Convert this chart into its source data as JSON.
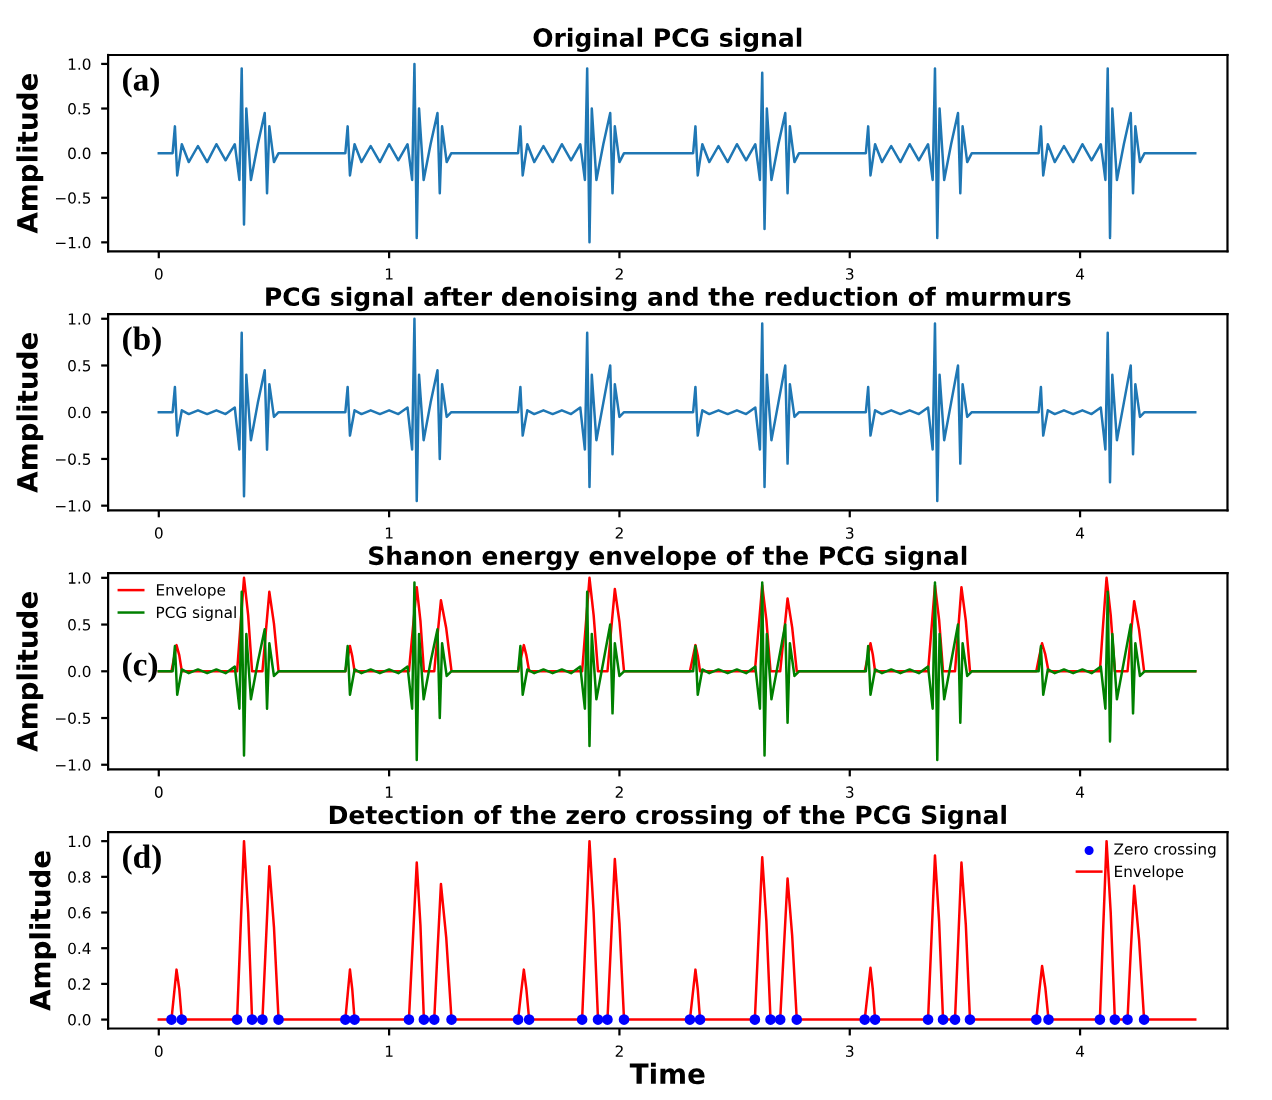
{
  "chart_data": [
    {
      "type": "line",
      "title": "Original PCG signal",
      "ylabel": "Amplitude",
      "annotations": [
        "(a)"
      ],
      "xlim": [
        -0.22,
        4.64
      ],
      "ylim": [
        -1.1,
        1.1
      ],
      "xticks": [
        0,
        1,
        2,
        3,
        4
      ],
      "yticks": [
        {
          "value": -1,
          "label": "−1.0"
        },
        {
          "value": -0.5,
          "label": "−0.5"
        },
        {
          "value": 0,
          "label": "0.0"
        },
        {
          "value": 0.5,
          "label": "0.5"
        },
        {
          "value": 1,
          "label": "1.0"
        }
      ],
      "grid": false,
      "series": [
        {
          "color": "#1f77b4",
          "x": [
            0,
            0.06,
            0.07,
            0.08,
            0.1,
            0.13,
            0.17,
            0.21,
            0.25,
            0.29,
            0.33,
            0.35,
            0.36,
            0.37,
            0.38,
            0.4,
            0.43,
            0.46,
            0.47,
            0.48,
            0.5,
            0.52,
            0.81,
            0.82,
            0.83,
            0.85,
            0.88,
            0.92,
            0.96,
            1.0,
            1.04,
            1.08,
            1.1,
            1.11,
            1.12,
            1.13,
            1.15,
            1.18,
            1.21,
            1.22,
            1.23,
            1.25,
            1.27,
            1.56,
            1.57,
            1.58,
            1.6,
            1.63,
            1.67,
            1.71,
            1.75,
            1.79,
            1.83,
            1.85,
            1.86,
            1.87,
            1.88,
            1.9,
            1.93,
            1.96,
            1.97,
            1.98,
            2.0,
            2.02,
            2.32,
            2.33,
            2.34,
            2.36,
            2.39,
            2.43,
            2.47,
            2.51,
            2.55,
            2.59,
            2.61,
            2.62,
            2.63,
            2.64,
            2.66,
            2.69,
            2.72,
            2.73,
            2.74,
            2.76,
            2.78,
            3.07,
            3.08,
            3.09,
            3.11,
            3.14,
            3.18,
            3.22,
            3.26,
            3.3,
            3.34,
            3.36,
            3.37,
            3.38,
            3.39,
            3.41,
            3.44,
            3.47,
            3.48,
            3.49,
            3.51,
            3.53,
            3.82,
            3.83,
            3.84,
            3.86,
            3.89,
            3.93,
            3.97,
            4.01,
            4.05,
            4.09,
            4.11,
            4.12,
            4.13,
            4.14,
            4.16,
            4.19,
            4.22,
            4.23,
            4.24,
            4.26,
            4.28,
            4.5
          ],
          "values": [
            0,
            0,
            0.3,
            -0.25,
            0.1,
            -0.1,
            0.08,
            -0.1,
            0.1,
            -0.08,
            0.1,
            -0.3,
            0.95,
            -0.8,
            0.5,
            -0.3,
            0.1,
            0.45,
            -0.45,
            0.3,
            -0.1,
            0,
            0,
            0.3,
            -0.25,
            0.1,
            -0.1,
            0.08,
            -0.1,
            0.1,
            -0.08,
            0.1,
            -0.3,
            1.0,
            -0.95,
            0.5,
            -0.3,
            0.1,
            0.45,
            -0.45,
            0.3,
            -0.1,
            0,
            0,
            0.3,
            -0.25,
            0.1,
            -0.1,
            0.08,
            -0.1,
            0.1,
            -0.08,
            0.1,
            -0.3,
            0.95,
            -1.0,
            0.5,
            -0.3,
            0.1,
            0.45,
            -0.45,
            0.3,
            -0.1,
            0,
            0,
            0.3,
            -0.25,
            0.1,
            -0.1,
            0.08,
            -0.1,
            0.1,
            -0.08,
            0.1,
            -0.3,
            0.9,
            -0.85,
            0.5,
            -0.3,
            0.1,
            0.45,
            -0.45,
            0.3,
            -0.1,
            0,
            0,
            0.3,
            -0.25,
            0.1,
            -0.1,
            0.08,
            -0.1,
            0.1,
            -0.08,
            0.1,
            -0.3,
            0.95,
            -0.95,
            0.5,
            -0.3,
            0.1,
            0.45,
            -0.45,
            0.3,
            -0.1,
            0,
            0,
            0.3,
            -0.25,
            0.1,
            -0.1,
            0.08,
            -0.1,
            0.1,
            -0.08,
            0.1,
            -0.3,
            0.95,
            -0.95,
            0.5,
            -0.3,
            0.1,
            0.45,
            -0.45,
            0.3,
            -0.1,
            0,
            0
          ]
        }
      ]
    },
    {
      "type": "line",
      "title": "PCG signal after denoising and the reduction of murmurs",
      "ylabel": "Amplitude",
      "annotations": [
        "(b)"
      ],
      "xlim": [
        -0.22,
        4.64
      ],
      "ylim": [
        -1.05,
        1.05
      ],
      "xticks": [
        0,
        1,
        2,
        3,
        4
      ],
      "yticks": [
        {
          "value": -1,
          "label": "−1.0"
        },
        {
          "value": -0.5,
          "label": "−0.5"
        },
        {
          "value": 0,
          "label": "0.0"
        },
        {
          "value": 0.5,
          "label": "0.5"
        },
        {
          "value": 1,
          "label": "1.0"
        }
      ],
      "grid": false,
      "series": [
        {
          "color": "#1f77b4",
          "x": [
            0,
            0.06,
            0.07,
            0.08,
            0.1,
            0.13,
            0.17,
            0.21,
            0.25,
            0.29,
            0.33,
            0.35,
            0.36,
            0.37,
            0.38,
            0.4,
            0.43,
            0.46,
            0.47,
            0.48,
            0.5,
            0.52,
            0.81,
            0.82,
            0.83,
            0.85,
            0.88,
            0.92,
            0.96,
            1.0,
            1.04,
            1.08,
            1.1,
            1.11,
            1.12,
            1.13,
            1.15,
            1.18,
            1.21,
            1.22,
            1.23,
            1.25,
            1.27,
            1.56,
            1.57,
            1.58,
            1.6,
            1.63,
            1.67,
            1.71,
            1.75,
            1.79,
            1.83,
            1.85,
            1.86,
            1.87,
            1.88,
            1.9,
            1.93,
            1.96,
            1.97,
            1.98,
            2.0,
            2.02,
            2.32,
            2.33,
            2.34,
            2.36,
            2.39,
            2.43,
            2.47,
            2.51,
            2.55,
            2.59,
            2.61,
            2.62,
            2.63,
            2.64,
            2.66,
            2.69,
            2.72,
            2.73,
            2.74,
            2.76,
            2.78,
            3.07,
            3.08,
            3.09,
            3.11,
            3.14,
            3.18,
            3.22,
            3.26,
            3.3,
            3.34,
            3.36,
            3.37,
            3.38,
            3.39,
            3.41,
            3.44,
            3.47,
            3.48,
            3.49,
            3.51,
            3.53,
            3.82,
            3.83,
            3.84,
            3.86,
            3.89,
            3.93,
            3.97,
            4.01,
            4.05,
            4.09,
            4.11,
            4.12,
            4.13,
            4.14,
            4.16,
            4.19,
            4.22,
            4.23,
            4.24,
            4.26,
            4.28,
            4.5
          ],
          "values": [
            0,
            0,
            0.27,
            -0.25,
            0.02,
            -0.02,
            0.02,
            -0.02,
            0.02,
            -0.02,
            0.05,
            -0.4,
            0.85,
            -0.9,
            0.4,
            -0.3,
            0.1,
            0.45,
            -0.4,
            0.3,
            -0.05,
            0,
            0,
            0.27,
            -0.25,
            0.02,
            -0.02,
            0.02,
            -0.02,
            0.02,
            -0.02,
            0.05,
            -0.4,
            1.0,
            -0.95,
            0.4,
            -0.3,
            0.1,
            0.45,
            -0.5,
            0.3,
            -0.05,
            0,
            0,
            0.27,
            -0.25,
            0.02,
            -0.02,
            0.02,
            -0.02,
            0.02,
            -0.02,
            0.05,
            -0.4,
            0.85,
            -0.8,
            0.4,
            -0.3,
            0.1,
            0.5,
            -0.45,
            0.3,
            -0.05,
            0,
            0,
            0.27,
            -0.25,
            0.02,
            -0.02,
            0.02,
            -0.02,
            0.02,
            -0.02,
            0.05,
            -0.4,
            0.95,
            -0.8,
            0.4,
            -0.3,
            0.1,
            0.5,
            -0.55,
            0.3,
            -0.05,
            0,
            0,
            0.27,
            -0.25,
            0.02,
            -0.02,
            0.02,
            -0.02,
            0.02,
            -0.02,
            0.05,
            -0.4,
            0.95,
            -0.95,
            0.4,
            -0.3,
            0.1,
            0.5,
            -0.55,
            0.3,
            -0.05,
            0,
            0,
            0.27,
            -0.25,
            0.02,
            -0.02,
            0.02,
            -0.02,
            0.02,
            -0.02,
            0.05,
            -0.4,
            0.85,
            -0.75,
            0.4,
            -0.3,
            0.1,
            0.5,
            -0.45,
            0.3,
            -0.05,
            0,
            0
          ]
        }
      ]
    },
    {
      "type": "line",
      "title": "Shanon energy envelope of the PCG signal",
      "ylabel": "Amplitude",
      "annotations": [
        "(c)"
      ],
      "legend": "top left",
      "xlim": [
        -0.22,
        4.64
      ],
      "ylim": [
        -1.05,
        1.05
      ],
      "xticks": [
        0,
        1,
        2,
        3,
        4
      ],
      "yticks": [
        {
          "value": -1,
          "label": "−1.0"
        },
        {
          "value": -0.5,
          "label": "−0.5"
        },
        {
          "value": 0,
          "label": "0.0"
        },
        {
          "value": 0.5,
          "label": "0.5"
        },
        {
          "value": 1,
          "label": "1.0"
        }
      ],
      "grid": false,
      "series": [
        {
          "name": "Envelope",
          "color": "#ff0000",
          "x": [
            0,
            0.055,
            0.066,
            0.077,
            0.089,
            0.1,
            0.34,
            0.355,
            0.37,
            0.388,
            0.405,
            0.45,
            0.465,
            0.48,
            0.5,
            0.52,
            0.81,
            0.82,
            0.83,
            0.84,
            0.85,
            1.086,
            1.103,
            1.12,
            1.136,
            1.151,
            1.196,
            1.21,
            1.225,
            1.248,
            1.271,
            1.56,
            1.572,
            1.585,
            1.596,
            1.608,
            1.838,
            1.854,
            1.87,
            1.888,
            1.907,
            1.948,
            1.964,
            1.98,
            2.0,
            2.02,
            2.306,
            2.318,
            2.33,
            2.34,
            2.35,
            2.588,
            2.604,
            2.62,
            2.638,
            2.656,
            2.698,
            2.714,
            2.73,
            2.75,
            2.77,
            3.065,
            3.078,
            3.09,
            3.1,
            3.11,
            3.34,
            3.355,
            3.37,
            3.388,
            3.405,
            3.457,
            3.471,
            3.485,
            3.504,
            3.522,
            3.81,
            3.822,
            3.835,
            3.849,
            3.863,
            4.086,
            4.1,
            4.115,
            4.133,
            4.151,
            4.206,
            4.22,
            4.235,
            4.256,
            4.278,
            4.5
          ],
          "values": [
            0,
            0,
            0.14,
            0.28,
            0.17,
            0,
            0,
            0.5,
            1.0,
            0.6,
            0,
            0,
            0.43,
            0.85,
            0.51,
            0,
            0,
            0.14,
            0.27,
            0.16,
            0,
            0,
            0.45,
            0.9,
            0.54,
            0,
            0,
            0.38,
            0.76,
            0.46,
            0,
            0,
            0.14,
            0.28,
            0.17,
            0,
            0,
            0.5,
            1.0,
            0.6,
            0,
            0,
            0.44,
            0.88,
            0.53,
            0,
            0,
            0.14,
            0.28,
            0.17,
            0,
            0,
            0.46,
            0.92,
            0.55,
            0,
            0,
            0.39,
            0.78,
            0.47,
            0,
            0,
            0.15,
            0.3,
            0.18,
            0,
            0,
            0.46,
            0.92,
            0.55,
            0,
            0,
            0.45,
            0.9,
            0.54,
            0,
            0,
            0.15,
            0.3,
            0.18,
            0,
            0,
            0.5,
            1.0,
            0.6,
            0,
            0,
            0.38,
            0.75,
            0.45,
            0,
            0
          ]
        },
        {
          "name": "PCG signal",
          "color": "#008000",
          "x": [
            0,
            0.06,
            0.07,
            0.08,
            0.1,
            0.13,
            0.17,
            0.21,
            0.25,
            0.29,
            0.33,
            0.35,
            0.36,
            0.37,
            0.38,
            0.4,
            0.43,
            0.46,
            0.47,
            0.48,
            0.5,
            0.52,
            0.81,
            0.82,
            0.83,
            0.85,
            0.88,
            0.92,
            0.96,
            1.0,
            1.04,
            1.08,
            1.1,
            1.11,
            1.12,
            1.13,
            1.15,
            1.18,
            1.21,
            1.22,
            1.23,
            1.25,
            1.27,
            1.56,
            1.57,
            1.58,
            1.6,
            1.63,
            1.67,
            1.71,
            1.75,
            1.79,
            1.83,
            1.85,
            1.86,
            1.87,
            1.88,
            1.9,
            1.93,
            1.96,
            1.97,
            1.98,
            2.0,
            2.02,
            2.32,
            2.33,
            2.34,
            2.36,
            2.39,
            2.43,
            2.47,
            2.51,
            2.55,
            2.59,
            2.61,
            2.62,
            2.63,
            2.64,
            2.66,
            2.69,
            2.72,
            2.73,
            2.74,
            2.76,
            2.78,
            3.07,
            3.08,
            3.09,
            3.11,
            3.14,
            3.18,
            3.22,
            3.26,
            3.3,
            3.34,
            3.36,
            3.37,
            3.38,
            3.39,
            3.41,
            3.44,
            3.47,
            3.48,
            3.49,
            3.51,
            3.53,
            3.82,
            3.83,
            3.84,
            3.86,
            3.89,
            3.93,
            3.97,
            4.01,
            4.05,
            4.09,
            4.11,
            4.12,
            4.13,
            4.14,
            4.16,
            4.19,
            4.22,
            4.23,
            4.24,
            4.26,
            4.28,
            4.5
          ],
          "values": [
            0,
            0,
            0.27,
            -0.25,
            0.02,
            -0.02,
            0.02,
            -0.02,
            0.02,
            -0.02,
            0.05,
            -0.4,
            0.85,
            -0.9,
            0.4,
            -0.3,
            0.1,
            0.45,
            -0.4,
            0.3,
            -0.05,
            0,
            0,
            0.27,
            -0.25,
            0.02,
            -0.02,
            0.02,
            -0.02,
            0.02,
            -0.02,
            0.05,
            -0.4,
            0.95,
            -0.95,
            0.4,
            -0.3,
            0.1,
            0.45,
            -0.5,
            0.3,
            -0.05,
            0,
            0,
            0.27,
            -0.25,
            0.02,
            -0.02,
            0.02,
            -0.02,
            0.02,
            -0.02,
            0.05,
            -0.4,
            0.85,
            -0.8,
            0.4,
            -0.3,
            0.1,
            0.5,
            -0.45,
            0.3,
            -0.05,
            0,
            0,
            0.27,
            -0.25,
            0.02,
            -0.02,
            0.02,
            -0.02,
            0.02,
            -0.02,
            0.05,
            -0.4,
            0.95,
            -0.9,
            0.4,
            -0.3,
            0.1,
            0.5,
            -0.55,
            0.3,
            -0.05,
            0,
            0,
            0.27,
            -0.25,
            0.02,
            -0.02,
            0.02,
            -0.02,
            0.02,
            -0.02,
            0.05,
            -0.4,
            0.95,
            -0.95,
            0.4,
            -0.3,
            0.1,
            0.5,
            -0.55,
            0.3,
            -0.05,
            0,
            0,
            0.27,
            -0.25,
            0.02,
            -0.02,
            0.02,
            -0.02,
            0.02,
            -0.02,
            0.05,
            -0.4,
            0.85,
            -0.75,
            0.4,
            -0.3,
            0.1,
            0.5,
            -0.45,
            0.3,
            -0.05,
            0,
            0
          ]
        }
      ]
    },
    {
      "type": "line",
      "title": "Detection of the zero crossing of the PCG Signal",
      "xlabel": "Time",
      "ylabel": "Amplitude",
      "annotations": [
        "(d)"
      ],
      "legend": "top right",
      "xlim": [
        -0.22,
        4.64
      ],
      "ylim": [
        -0.05,
        1.05
      ],
      "xticks": [
        0,
        1,
        2,
        3,
        4
      ],
      "yticks": [
        {
          "value": 0,
          "label": "0.0"
        },
        {
          "value": 0.2,
          "label": "0.2"
        },
        {
          "value": 0.4,
          "label": "0.4"
        },
        {
          "value": 0.6,
          "label": "0.6"
        },
        {
          "value": 0.8,
          "label": "0.8"
        },
        {
          "value": 1,
          "label": "1.0"
        }
      ],
      "grid": false,
      "series": [
        {
          "name": "Zero crossing",
          "type": "scatter",
          "marker": "circle",
          "color": "#0000ff",
          "x": [
            0.055,
            0.1,
            0.34,
            0.405,
            0.45,
            0.52,
            0.81,
            0.85,
            1.086,
            1.151,
            1.196,
            1.271,
            1.56,
            1.608,
            1.838,
            1.907,
            1.948,
            2.02,
            2.306,
            2.35,
            2.588,
            2.656,
            2.698,
            2.77,
            3.065,
            3.11,
            3.34,
            3.405,
            3.457,
            3.522,
            3.81,
            3.863,
            4.086,
            4.151,
            4.206,
            4.278
          ],
          "values": [
            0,
            0,
            0,
            0,
            0,
            0,
            0,
            0,
            0,
            0,
            0,
            0,
            0,
            0,
            0,
            0,
            0,
            0,
            0,
            0,
            0,
            0,
            0,
            0,
            0,
            0,
            0,
            0,
            0,
            0,
            0,
            0,
            0,
            0,
            0,
            0
          ]
        },
        {
          "name": "Envelope",
          "color": "#ff0000",
          "x": [
            0,
            0.055,
            0.066,
            0.077,
            0.089,
            0.1,
            0.34,
            0.355,
            0.37,
            0.388,
            0.405,
            0.45,
            0.465,
            0.48,
            0.5,
            0.52,
            0.81,
            0.82,
            0.83,
            0.84,
            0.85,
            1.086,
            1.103,
            1.12,
            1.136,
            1.151,
            1.196,
            1.21,
            1.225,
            1.248,
            1.271,
            1.56,
            1.572,
            1.585,
            1.596,
            1.608,
            1.838,
            1.854,
            1.87,
            1.888,
            1.907,
            1.948,
            1.964,
            1.98,
            2.0,
            2.02,
            2.306,
            2.318,
            2.33,
            2.34,
            2.35,
            2.588,
            2.604,
            2.62,
            2.638,
            2.656,
            2.698,
            2.714,
            2.73,
            2.75,
            2.77,
            3.065,
            3.078,
            3.09,
            3.1,
            3.11,
            3.34,
            3.355,
            3.37,
            3.388,
            3.405,
            3.457,
            3.471,
            3.485,
            3.504,
            3.522,
            3.81,
            3.822,
            3.835,
            3.849,
            3.863,
            4.086,
            4.1,
            4.115,
            4.133,
            4.151,
            4.206,
            4.22,
            4.235,
            4.256,
            4.278,
            4.5
          ],
          "values": [
            0,
            0,
            0.14,
            0.28,
            0.17,
            0,
            0,
            0.5,
            1.0,
            0.6,
            0,
            0,
            0.43,
            0.86,
            0.52,
            0,
            0,
            0.14,
            0.28,
            0.17,
            0,
            0,
            0.44,
            0.88,
            0.53,
            0,
            0,
            0.38,
            0.76,
            0.46,
            0,
            0,
            0.14,
            0.28,
            0.17,
            0,
            0,
            0.5,
            1.0,
            0.6,
            0,
            0,
            0.45,
            0.9,
            0.54,
            0,
            0,
            0.14,
            0.28,
            0.17,
            0,
            0,
            0.46,
            0.91,
            0.55,
            0,
            0,
            0.4,
            0.79,
            0.47,
            0,
            0,
            0.15,
            0.29,
            0.17,
            0,
            0,
            0.46,
            0.92,
            0.55,
            0,
            0,
            0.44,
            0.88,
            0.53,
            0,
            0,
            0.15,
            0.3,
            0.18,
            0,
            0,
            0.5,
            1.0,
            0.6,
            0,
            0,
            0.38,
            0.75,
            0.45,
            0,
            0
          ]
        }
      ]
    }
  ]
}
